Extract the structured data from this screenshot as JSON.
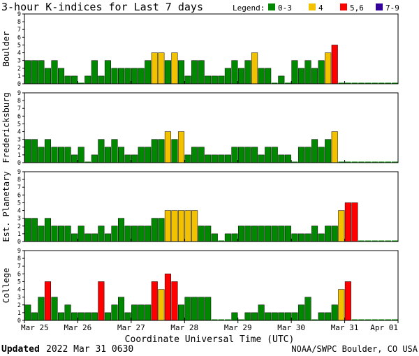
{
  "header": {
    "title": "3-hour K-indices for Last 7 days",
    "legend_title": "Legend:",
    "legend": [
      {
        "label": "0-3",
        "color": "#008800"
      },
      {
        "label": "4",
        "color": "#f2c200"
      },
      {
        "label": "5,6",
        "color": "#ff0000"
      },
      {
        "label": "7-9",
        "color": "#330099"
      }
    ]
  },
  "footer": {
    "updated_label": "Updated",
    "updated_value": "2022 Mar 31 0630",
    "credit": "NOAA/SWPC Boulder, CO USA"
  },
  "chart_data": {
    "type": "bar",
    "xlabel": "Coordinate Universal Time (UTC)",
    "x_ticks": [
      "Mar 25",
      "Mar 26",
      "Mar 27",
      "Mar 28",
      "Mar 29",
      "Mar 30",
      "Mar 31",
      "Apr 01"
    ],
    "ylim": [
      0,
      9
    ],
    "y_ticks": [
      "0",
      "1",
      "2",
      "3",
      "4",
      "5",
      "6",
      "7",
      "8",
      "9"
    ],
    "bars_per_day": 8,
    "panels": [
      {
        "ylabel": "Boulder",
        "values": [
          3,
          3,
          3,
          2,
          3,
          2,
          1,
          1,
          0,
          1,
          3,
          1,
          3,
          2,
          2,
          2,
          2,
          2,
          3,
          4,
          4,
          3,
          4,
          3,
          1,
          3,
          3,
          1,
          1,
          1,
          2,
          3,
          2,
          3,
          4,
          2,
          2,
          0,
          1,
          0,
          3,
          2,
          3,
          2,
          3,
          4,
          5,
          0,
          0,
          0,
          0,
          0,
          0,
          0,
          0,
          0
        ]
      },
      {
        "ylabel": "Fredericksburg",
        "values": [
          3,
          3,
          2,
          3,
          2,
          2,
          2,
          1,
          2,
          0,
          1,
          3,
          2,
          3,
          2,
          1,
          1,
          2,
          2,
          3,
          3,
          4,
          3,
          4,
          1,
          2,
          2,
          1,
          1,
          1,
          1,
          2,
          2,
          2,
          2,
          1,
          2,
          2,
          1,
          1,
          0,
          2,
          2,
          3,
          2,
          3,
          4,
          0,
          0,
          0,
          0,
          0,
          0,
          0,
          0,
          0
        ]
      },
      {
        "ylabel": "Est. Planetary",
        "values": [
          3,
          3,
          2,
          3,
          2,
          2,
          2,
          1,
          2,
          1,
          1,
          2,
          1,
          2,
          3,
          2,
          2,
          2,
          2,
          3,
          3,
          4,
          4,
          4,
          4,
          4,
          2,
          2,
          1,
          0,
          1,
          1,
          2,
          2,
          2,
          2,
          2,
          2,
          2,
          2,
          1,
          1,
          1,
          2,
          1,
          2,
          2,
          4,
          5,
          5,
          0,
          0,
          0,
          0,
          0,
          0
        ]
      },
      {
        "ylabel": "College",
        "values": [
          2,
          1,
          3,
          5,
          3,
          1,
          2,
          1,
          1,
          1,
          1,
          5,
          1,
          2,
          3,
          1,
          2,
          2,
          2,
          5,
          4,
          6,
          5,
          2,
          3,
          3,
          3,
          3,
          0,
          0,
          0,
          1,
          0,
          1,
          1,
          2,
          1,
          1,
          1,
          1,
          1,
          2,
          3,
          0,
          1,
          1,
          2,
          4,
          5,
          0,
          0,
          0,
          0,
          0,
          0,
          0
        ]
      }
    ]
  }
}
